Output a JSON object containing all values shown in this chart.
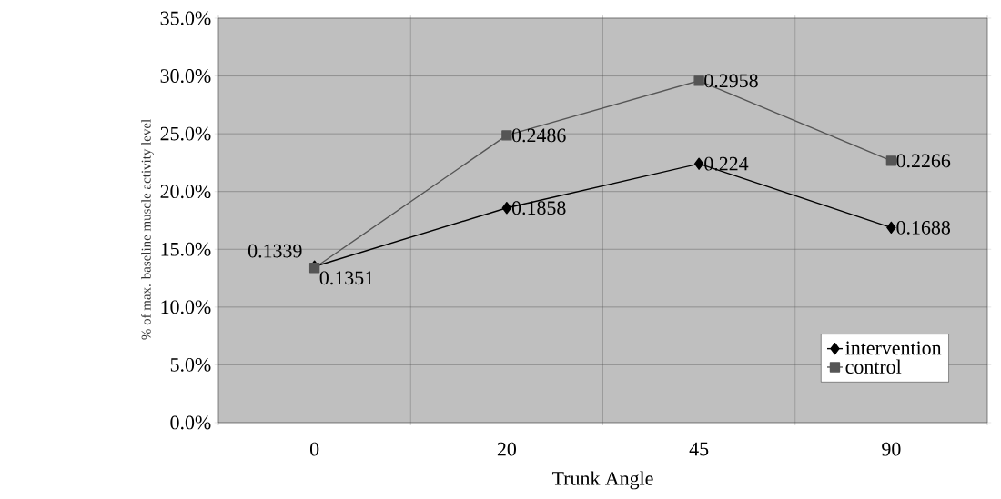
{
  "chart_data": {
    "type": "line",
    "xlabel": "Trunk Angle",
    "ylabel": "% of max. baseline muscle activity level",
    "categories": [
      "0",
      "20",
      "45",
      "90"
    ],
    "series": [
      {
        "name": "intervention",
        "color": "#000000",
        "marker": "diamond",
        "values": [
          0.1351,
          0.1858,
          0.224,
          0.1688
        ]
      },
      {
        "name": "control",
        "color": "#555555",
        "marker": "square",
        "values": [
          0.1339,
          0.2486,
          0.2958,
          0.2266
        ]
      }
    ],
    "ylim": [
      0,
      0.35
    ],
    "yticks": [
      {
        "value": 0,
        "label": "0.0%"
      },
      {
        "value": 0.05,
        "label": "5.0%"
      },
      {
        "value": 0.1,
        "label": "10.0%"
      },
      {
        "value": 0.15,
        "label": "15.0%"
      },
      {
        "value": 0.2,
        "label": "20.0%"
      },
      {
        "value": 0.25,
        "label": "25.0%"
      },
      {
        "value": 0.3,
        "label": "30.0%"
      },
      {
        "value": 0.35,
        "label": "35.0%"
      }
    ],
    "grid": "y",
    "legend": "bottom right",
    "data_labels": true,
    "line_style": "solid"
  }
}
